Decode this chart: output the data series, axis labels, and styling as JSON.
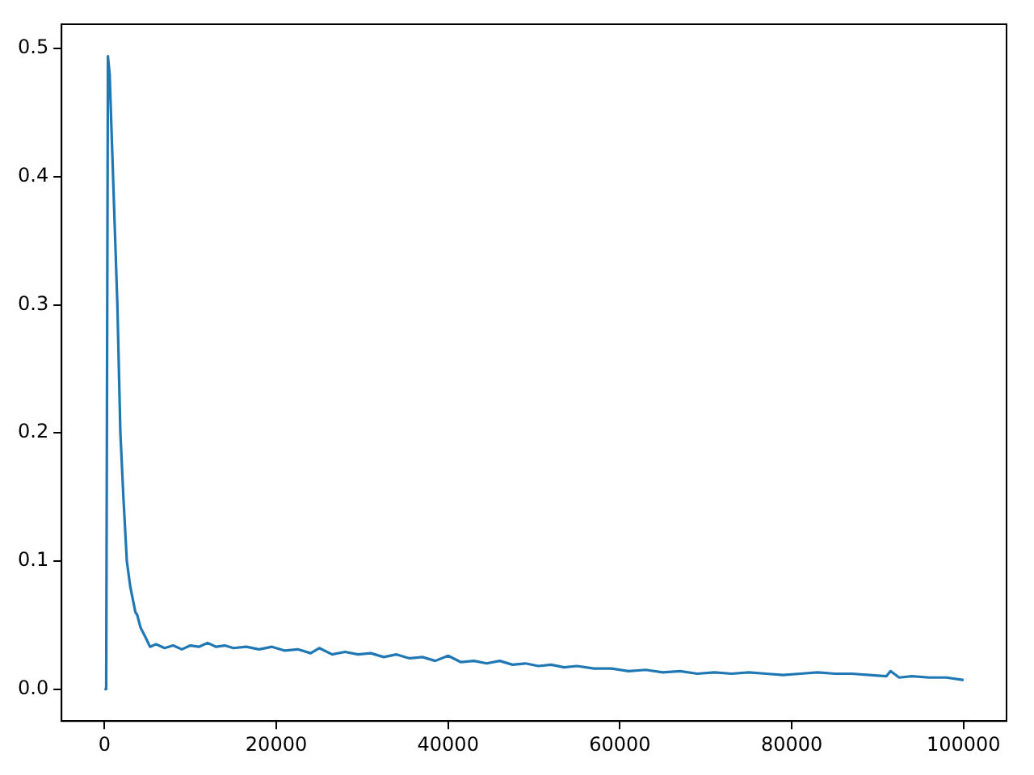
{
  "chart_data": {
    "type": "line",
    "x": [
      0,
      200,
      400,
      600,
      900,
      1200,
      1500,
      1850,
      2200,
      2600,
      3000,
      3300,
      3600,
      3800,
      4200,
      4800,
      5300,
      6000,
      7000,
      8000,
      9000,
      10000,
      11000,
      12000,
      13000,
      14000,
      15000,
      16500,
      18000,
      19500,
      21000,
      22500,
      24000,
      25000,
      26500,
      28000,
      29500,
      31000,
      32500,
      34000,
      35500,
      37000,
      38500,
      40000,
      41500,
      43000,
      44500,
      46000,
      47500,
      49000,
      50500,
      52000,
      53500,
      55000,
      57000,
      59000,
      61000,
      63000,
      65000,
      67000,
      69000,
      71000,
      73000,
      75000,
      77000,
      79000,
      81000,
      83000,
      85000,
      87000,
      89000,
      91000,
      91500,
      92500,
      94000,
      96000,
      98000,
      100000
    ],
    "series": [
      {
        "color": "#1f77b4",
        "values": [
          0.0,
          0.0,
          0.494,
          0.48,
          0.42,
          0.36,
          0.3,
          0.2,
          0.15,
          0.1,
          0.08,
          0.07,
          0.06,
          0.058,
          0.048,
          0.04,
          0.033,
          0.035,
          0.032,
          0.034,
          0.031,
          0.034,
          0.033,
          0.036,
          0.033,
          0.034,
          0.032,
          0.033,
          0.031,
          0.033,
          0.03,
          0.031,
          0.028,
          0.032,
          0.027,
          0.029,
          0.027,
          0.028,
          0.025,
          0.027,
          0.024,
          0.025,
          0.022,
          0.026,
          0.021,
          0.022,
          0.02,
          0.022,
          0.019,
          0.02,
          0.018,
          0.019,
          0.017,
          0.018,
          0.016,
          0.016,
          0.014,
          0.015,
          0.013,
          0.014,
          0.012,
          0.013,
          0.012,
          0.013,
          0.012,
          0.011,
          0.012,
          0.013,
          0.012,
          0.012,
          0.011,
          0.01,
          0.014,
          0.009,
          0.01,
          0.009,
          0.009,
          0.007
        ]
      }
    ],
    "xlim": [
      -5000,
      105000
    ],
    "ylim": [
      -0.025,
      0.519
    ],
    "xticks": [
      0,
      20000,
      40000,
      60000,
      80000,
      100000
    ],
    "yticks": [
      {
        "value": 0,
        "label": "0.0"
      },
      0.1,
      0.2,
      0.3,
      0.4,
      0.5
    ],
    "grid": false,
    "legend": false
  }
}
